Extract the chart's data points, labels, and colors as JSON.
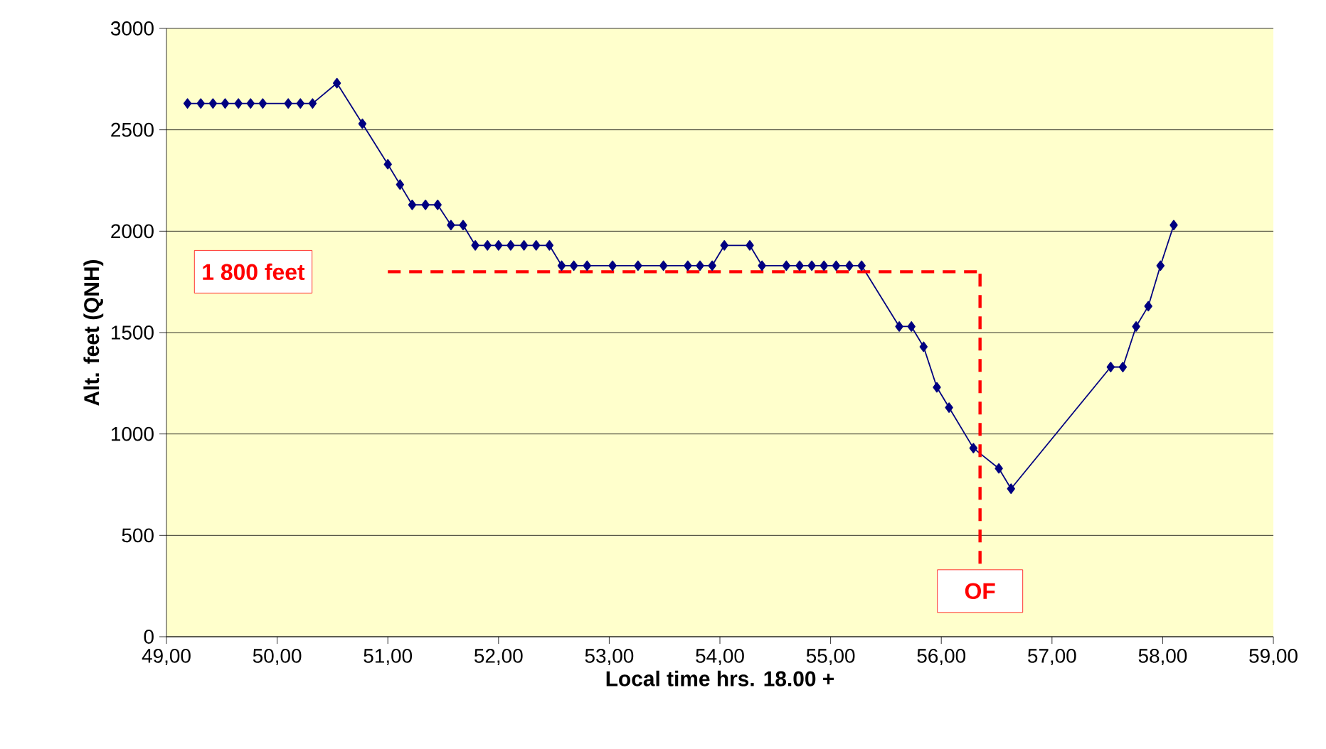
{
  "chart_data": {
    "type": "line",
    "xlabel": "Local time hrs. 18.00 +",
    "ylabel": "Alt. feet (QNH)",
    "x": [
      49.19,
      49.31,
      49.42,
      49.53,
      49.65,
      49.76,
      49.87,
      50.1,
      50.21,
      50.32,
      50.54,
      50.77,
      51.0,
      51.11,
      51.22,
      51.34,
      51.45,
      51.57,
      51.68,
      51.79,
      51.9,
      52.0,
      52.11,
      52.23,
      52.34,
      52.46,
      52.57,
      52.68,
      52.8,
      53.03,
      53.26,
      53.49,
      53.71,
      53.82,
      53.93,
      54.04,
      54.27,
      54.38,
      54.6,
      54.72,
      54.83,
      54.94,
      55.05,
      55.17,
      55.28,
      55.62,
      55.73,
      55.84,
      55.96,
      56.07,
      56.29,
      56.52,
      56.63,
      57.53,
      57.64,
      57.76,
      57.87,
      57.98,
      58.1
    ],
    "series": [
      {
        "color": "#000080",
        "values": [
          2630,
          2630,
          2630,
          2630,
          2630,
          2630,
          2630,
          2630,
          2630,
          2630,
          2730,
          2530,
          2330,
          2230,
          2130,
          2130,
          2130,
          2030,
          2030,
          1930,
          1930,
          1930,
          1930,
          1930,
          1930,
          1930,
          1830,
          1830,
          1830,
          1830,
          1830,
          1830,
          1830,
          1830,
          1830,
          1930,
          1930,
          1830,
          1830,
          1830,
          1830,
          1830,
          1830,
          1830,
          1830,
          1530,
          1530,
          1430,
          1230,
          1130,
          930,
          830,
          730,
          1330,
          1330,
          1530,
          1630,
          1830,
          2030
        ]
      }
    ],
    "marker": "diamond",
    "line_style": "solid",
    "grid": "y",
    "xlim": [
      49,
      59
    ],
    "ylim": [
      0,
      3000
    ],
    "xticks": [
      {
        "value": 49,
        "label": "49,00"
      },
      {
        "value": 50,
        "label": "50,00"
      },
      {
        "value": 51,
        "label": "51,00"
      },
      {
        "value": 52,
        "label": "52,00"
      },
      {
        "value": 53,
        "label": "53,00"
      },
      {
        "value": 54,
        "label": "54,00"
      },
      {
        "value": 55,
        "label": "55,00"
      },
      {
        "value": 56,
        "label": "56,00"
      },
      {
        "value": 57,
        "label": "57,00"
      },
      {
        "value": 58,
        "label": "58,00"
      },
      {
        "value": 59,
        "label": "59,00"
      }
    ],
    "yticks": [
      0,
      500,
      1000,
      1500,
      2000,
      2500,
      3000
    ],
    "ref_lines": [
      {
        "axis": "y",
        "value": 1800,
        "label": "1 800 feet",
        "color": "#ff0000",
        "line_style": "dashed"
      },
      {
        "axis": "x",
        "value": 56.35,
        "label": "OF",
        "color": "#ff0000",
        "line_style": "dashed"
      }
    ]
  }
}
